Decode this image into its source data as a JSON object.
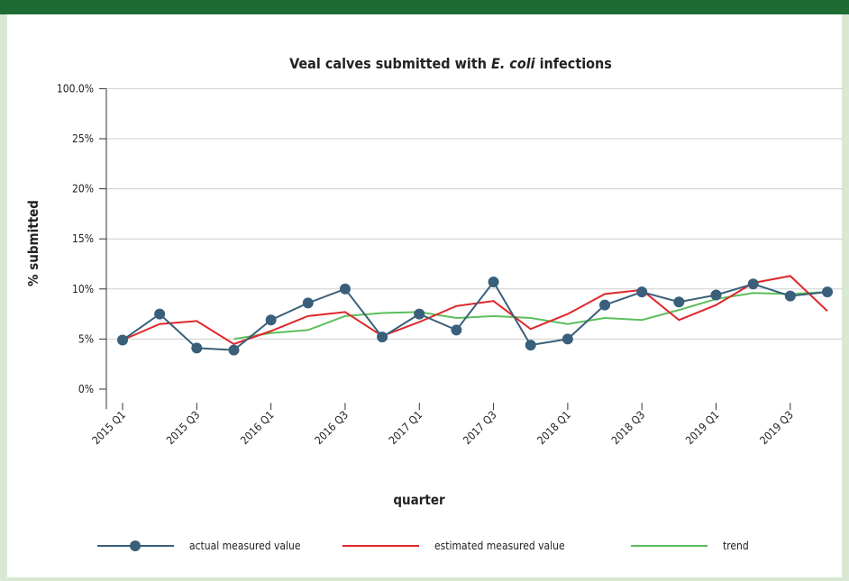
{
  "chart_data": {
    "type": "line",
    "title": "Veal calves submitted with E. coli infections",
    "title_italic": "E. coli",
    "y_label": "% submitted",
    "x_label": "quarter",
    "categories": [
      "2015 Q1",
      null,
      "2015 Q3",
      null,
      "2016 Q1",
      null,
      "2016 Q3",
      null,
      "2017 Q1",
      null,
      "2017 Q3",
      null,
      "2018 Q1",
      null,
      "2018 Q3",
      null,
      "2019 Q1",
      null,
      "2019 Q3",
      null
    ],
    "series": [
      {
        "name": "actual measured value",
        "color": "#3a5f7a",
        "markers": true,
        "values": [
          4.9,
          7.5,
          4.1,
          3.9,
          6.9,
          8.6,
          10.0,
          5.2,
          7.5,
          5.9,
          10.7,
          4.4,
          5.0,
          8.4,
          9.7,
          8.7,
          9.4,
          10.5,
          9.3,
          9.7
        ]
      },
      {
        "name": "estimated measured value",
        "color": "#e0262b",
        "markers": false,
        "values": [
          4.9,
          6.5,
          6.8,
          4.5,
          5.8,
          7.3,
          7.7,
          5.3,
          6.7,
          8.3,
          8.8,
          6.0,
          7.5,
          9.5,
          9.9,
          6.9,
          8.4,
          10.6,
          11.3,
          7.8
        ]
      },
      {
        "name": "trend",
        "color": "#5cbf5c",
        "markers": false,
        "values": [
          null,
          null,
          null,
          5.0,
          5.6,
          5.9,
          7.3,
          7.6,
          7.7,
          7.1,
          7.3,
          7.1,
          6.5,
          7.1,
          6.9,
          7.9,
          9.0,
          9.6,
          9.5,
          9.7
        ]
      }
    ],
    "ylim": [
      -2,
      100
    ],
    "axis_break": [
      25,
      100
    ],
    "yticks": [
      {
        "value": 0,
        "label": "0%"
      },
      {
        "value": 5,
        "label": "5%"
      },
      {
        "value": 10,
        "label": "10%"
      },
      {
        "value": 15,
        "label": "15%"
      },
      {
        "value": 20,
        "label": "20%"
      },
      {
        "value": 25,
        "label": "25%"
      },
      {
        "value": 100,
        "label": "100.0%"
      }
    ],
    "grid": true
  }
}
